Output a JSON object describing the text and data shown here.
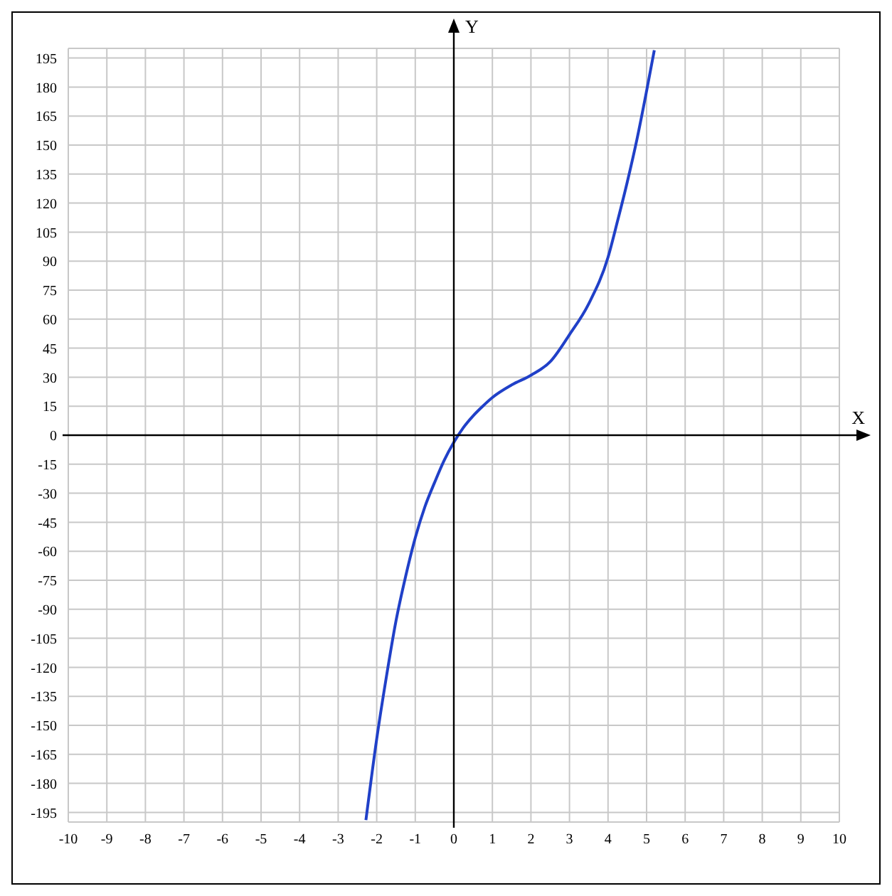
{
  "chart_data": {
    "type": "line",
    "xlabel": "X",
    "ylabel": "Y",
    "x": [
      -2.28,
      -2,
      -1.75,
      -1.5,
      -1.25,
      -1,
      -0.75,
      -0.5,
      -0.25,
      0,
      0.25,
      0.5,
      0.75,
      1,
      1.5,
      2,
      2.5,
      3,
      3.5,
      4,
      4.25,
      4.5,
      4.75,
      5,
      5.2
    ],
    "series": [
      {
        "color": "#2040c8",
        "values": [
          -199,
          -157,
          -125,
          -96,
          -73,
          -53,
          -37,
          -24.5,
          -13,
          -3.7,
          4,
          10,
          15,
          19.5,
          26,
          31,
          38,
          52,
          68,
          92,
          111,
          131,
          153,
          178,
          199
        ]
      }
    ],
    "xlim": [
      -10,
      10
    ],
    "ylim": [
      -200,
      200
    ],
    "xticks": [
      -10,
      -9,
      -8,
      -7,
      -6,
      -5,
      -4,
      -3,
      -2,
      -1,
      0,
      1,
      2,
      3,
      4,
      5,
      6,
      7,
      8,
      9,
      10
    ],
    "yticks": [
      -195,
      -180,
      -165,
      -150,
      -135,
      -120,
      -105,
      -90,
      -75,
      -60,
      -45,
      -30,
      -15,
      0,
      15,
      30,
      45,
      60,
      75,
      90,
      105,
      120,
      135,
      150,
      165,
      180,
      195
    ],
    "grid": true
  }
}
